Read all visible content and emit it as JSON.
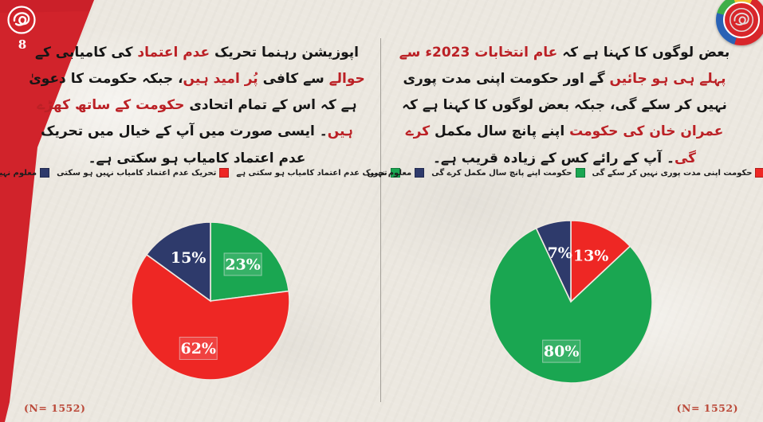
{
  "page": {
    "number": "8",
    "background_color": "#ece8e0",
    "accent_red": "#d1232b",
    "divider_color": "#a39f98"
  },
  "logos": {
    "top_left": "swirl-emblem-on-red-band",
    "top_right": "multicolor-ring-swirl-logo"
  },
  "left_panel": {
    "question_segments": [
      {
        "text": "اپوزیشن رہنما تحریک ",
        "color": "#161616"
      },
      {
        "text": "عدم اعتماد",
        "color": "#bb2025"
      },
      {
        "text": " کی کامیابی کے ",
        "color": "#161616"
      },
      {
        "text": "حوالے",
        "color": "#bb2025"
      },
      {
        "text": " سے کافی ",
        "color": "#161616"
      },
      {
        "text": "پُر امید ہیں",
        "color": "#bb2025"
      },
      {
        "text": "، جبکہ حکومت کا دعویٰ ہے کہ اس کے تمام اتحادی ",
        "color": "#161616"
      },
      {
        "text": "حکومت کے ساتھ کھڑے ہیں",
        "color": "#bb2025"
      },
      {
        "text": "۔ ایسی صورت میں آپ کے خیال میں تحریک عدم اعتماد کامیاب ہو سکتی ہے۔",
        "color": "#161616"
      }
    ],
    "legend": [
      {
        "label": "معلوم نہیں",
        "color": "#2e3a6b"
      },
      {
        "label": "تحریک عدم اعتماد کامیاب نہیں ہو سکتی",
        "color": "#ee2724"
      },
      {
        "label": "تحریک عدم اعتماد کامیاب ہو سکتی ہے",
        "color": "#1aa651"
      }
    ],
    "sample_size": "(N= 1552)"
  },
  "right_panel": {
    "question_segments": [
      {
        "text": "بعض لوگوں کا کہنا ہے کہ ",
        "color": "#161616"
      },
      {
        "text": "عام انتخابات 2023ء سے پہلے ہی ہو جائیں",
        "color": "#bb2025"
      },
      {
        "text": " گے اور حکومت اپنی مدت پوری نہیں کر سکے گی، جبکہ بعض لوگوں کا کہنا ہے کہ ",
        "color": "#161616"
      },
      {
        "text": "عمران خان کی حکومت",
        "color": "#bb2025"
      },
      {
        "text": " اپنے پانچ سال مکمل ",
        "color": "#161616"
      },
      {
        "text": "کرے گی",
        "color": "#bb2025"
      },
      {
        "text": "۔ آپ کے رائے کس کے زیادہ قریب ہے۔",
        "color": "#161616"
      }
    ],
    "legend": [
      {
        "label": "معلوم نہیں",
        "color": "#2e3a6b"
      },
      {
        "label": "حکومت اپنے پانچ سال مکمل کرے گی",
        "color": "#1aa651"
      },
      {
        "label": "حکومت اپنی مدت پوری نہیں کر سکے گی",
        "color": "#ee2724"
      }
    ],
    "sample_size": "(N= 1552)"
  },
  "chart_data": [
    {
      "type": "pie",
      "panel": "left",
      "slice_labels": [
        "تحریک عدم اعتماد کامیاب ہو سکتی ہے",
        "تحریک عدم اعتماد کامیاب نہیں ہو سکتی",
        "معلوم نہیں"
      ],
      "values": [
        23,
        62,
        15
      ],
      "data_labels": [
        "23%",
        "62%",
        "15%"
      ],
      "colors": [
        "#1aa651",
        "#ee2724",
        "#2e3a6b"
      ],
      "start_angle_deg": 0,
      "direction": "clockwise",
      "label_boxes": [
        true,
        true,
        false
      ],
      "legend_position": "top",
      "sample_size": "(N= 1552)"
    },
    {
      "type": "pie",
      "panel": "right",
      "slice_labels": [
        "حکومت اپنی مدت پوری نہیں کر سکے گی",
        "حکومت اپنے پانچ سال مکمل کرے گی",
        "معلوم نہیں"
      ],
      "values": [
        13,
        80,
        7
      ],
      "data_labels": [
        "13%",
        "80%",
        "7%"
      ],
      "colors": [
        "#ee2724",
        "#1aa651",
        "#2e3a6b"
      ],
      "start_angle_deg": 0,
      "direction": "clockwise",
      "label_boxes": [
        false,
        true,
        false
      ],
      "legend_position": "top",
      "sample_size": "(N= 1552)"
    }
  ]
}
